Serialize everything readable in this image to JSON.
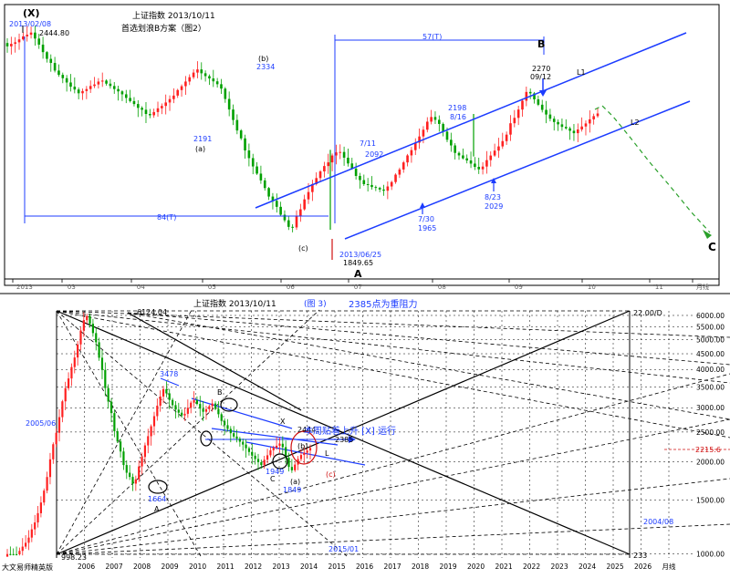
{
  "colors": {
    "up_candle": "#ff2020",
    "down_candle": "#00a000",
    "channel": "#1c3cff",
    "annotation_blue": "#1c3cff",
    "projection": "#2aa02a",
    "red_text": "#d01010",
    "fan_lines": "#000000",
    "price_axis_blue": "#2040c0",
    "current_price_red": "#d01010"
  },
  "chart_data": [
    {
      "type": "candlestick",
      "panel": "top",
      "title": "上证指数  2013/10/11",
      "subtitle": "首选划浪B方案（图2）",
      "wave_label_x": "(X)",
      "x_tick_labels": [
        "2013",
        "'03",
        "'04",
        "'05",
        "'06",
        "'07",
        "'08",
        "'09",
        "'10",
        "'11",
        "月线"
      ],
      "annotations": [
        {
          "id": "start",
          "text1": "2013/02/08",
          "text2": "2444.80",
          "color": "blue"
        },
        {
          "id": "b",
          "text1": "(b)",
          "text2": "2334"
        },
        {
          "id": "a_small",
          "text1": "2191",
          "text2": "(a)"
        },
        {
          "id": "c_small",
          "text1": "(c)"
        },
        {
          "id": "low",
          "text1": "2013/06/25",
          "text2": "1849.65"
        },
        {
          "id": "A",
          "text1": "A"
        },
        {
          "id": "p711",
          "text1": "7/11",
          "text2": "2092"
        },
        {
          "id": "p816",
          "text1": "2198",
          "text2": "8/16"
        },
        {
          "id": "p730",
          "text1": "7/30",
          "text2": "1965"
        },
        {
          "id": "p823",
          "text1": "8/23",
          "text2": "2029"
        },
        {
          "id": "B",
          "text1": "B",
          "text2": "2270",
          "text3": "09/12"
        },
        {
          "id": "C",
          "text1": "C"
        },
        {
          "id": "L1",
          "text1": "L1"
        },
        {
          "id": "L2",
          "text1": "L2"
        },
        {
          "id": "span57",
          "text1": "57(T)"
        },
        {
          "id": "span84",
          "text1": "84(T)"
        }
      ],
      "key_prices": {
        "start_high": 2444.8,
        "b_high": 2334,
        "a_low": 2191,
        "low_A": 1849.65,
        "high_B": 2270,
        "p_0711": 2092,
        "p_0816": 2198,
        "p_0730": 1965,
        "p_0823": 2029
      }
    },
    {
      "type": "candlestick",
      "panel": "bottom",
      "title": "上证指数  2013/10/11",
      "subtitle": "(图 3)",
      "headline": "2385点为重阻力",
      "scale": "log",
      "ylim": [
        998.23,
        6124.04
      ],
      "y_tick_labels": [
        "6000.00",
        "5500.00",
        "5000.00",
        "4500.00",
        "4000.00",
        "3500.00",
        "3000.00",
        "2500.00",
        "2000.00",
        "1500.00",
        "1000.00"
      ],
      "y_ticks": [
        6000,
        5500,
        5000,
        4500,
        4000,
        3500,
        3000,
        2500,
        2000,
        1500,
        1000
      ],
      "current_price_label": "2215.6",
      "current_price": 2215.6,
      "x_tick_labels": [
        "2006",
        "2007",
        "2008",
        "2009",
        "2010",
        "2011",
        "2012",
        "2013",
        "2014",
        "2015",
        "2016",
        "2017",
        "2018",
        "2019",
        "2020",
        "2021",
        "2022",
        "2023",
        "2024",
        "2025",
        "2026",
        "月线"
      ],
      "annotations": [
        {
          "id": "top",
          "text1": "6124.04"
        },
        {
          "id": "bottom",
          "text1": "998.23"
        },
        {
          "id": "p3478",
          "text1": "3478"
        },
        {
          "id": "p1664",
          "text1": "1664",
          "text2": "A"
        },
        {
          "id": "Bw",
          "text1": "B"
        },
        {
          "id": "Cw",
          "text1": "C"
        },
        {
          "id": "X",
          "text1": "X"
        },
        {
          "id": "p2444",
          "text1": "2444"
        },
        {
          "id": "p2385",
          "text1": "2385"
        },
        {
          "id": "p1949",
          "text1": "1949"
        },
        {
          "id": "p1849",
          "text1": "1849"
        },
        {
          "id": "b_small",
          "text1": "(b)"
        },
        {
          "id": "a_small",
          "text1": "(a)"
        },
        {
          "id": "c_small",
          "text1": "(c)"
        },
        {
          "id": "L",
          "text1": "L"
        },
        {
          "id": "note",
          "text1": "本周贴着上升 [X] 运行"
        },
        {
          "id": "d200506",
          "text1": "2005/06"
        },
        {
          "id": "d201501",
          "text1": "2015/01"
        },
        {
          "id": "d200408",
          "text1": "2004/08"
        },
        {
          "id": "label22",
          "text1": "22.00/D"
        },
        {
          "id": "label233",
          "text1": "233"
        }
      ],
      "brand": "大文易师精英版"
    }
  ]
}
